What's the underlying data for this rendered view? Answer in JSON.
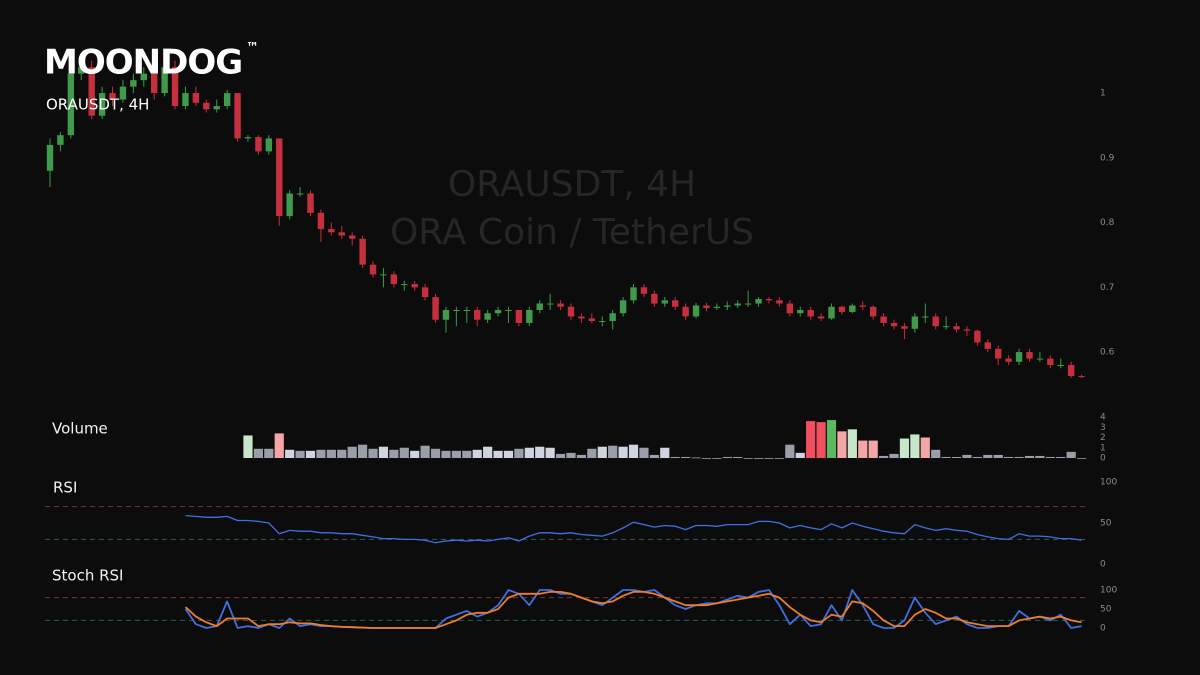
{
  "header": {
    "logo": "MOONDOG",
    "trademark": "™"
  },
  "chart_data": [
    {
      "type": "candlestick",
      "title": "ORAUSDT, 4H",
      "watermark": [
        "ORAUSDT, 4H",
        "ORA Coin / TetherUS"
      ],
      "up_color": "#3f9a4c",
      "down_color": "#c62f3d",
      "ylim": [
        0.526,
        1.082
      ],
      "yticks": [
        0.6,
        0.7,
        0.8,
        0.9,
        1
      ],
      "ohlc": [
        [
          0.88,
          0.93,
          0.855,
          0.92
        ],
        [
          0.92,
          0.94,
          0.91,
          0.935
        ],
        [
          0.935,
          1.05,
          0.93,
          1.03
        ],
        [
          1.03,
          1.06,
          1.02,
          1.04
        ],
        [
          1.04,
          1.05,
          0.96,
          0.965
        ],
        [
          0.965,
          1.01,
          0.96,
          1.0
        ],
        [
          1.0,
          1.01,
          0.98,
          0.99
        ],
        [
          0.99,
          1.02,
          0.985,
          1.01
        ],
        [
          1.01,
          1.03,
          1.0,
          1.02
        ],
        [
          1.02,
          1.04,
          1.01,
          1.03
        ],
        [
          1.03,
          1.04,
          0.99,
          1.0
        ],
        [
          1.0,
          1.05,
          0.995,
          1.04
        ],
        [
          1.04,
          1.05,
          0.975,
          0.98
        ],
        [
          0.98,
          1.01,
          0.975,
          1.0
        ],
        [
          1.0,
          1.01,
          0.98,
          0.985
        ],
        [
          0.985,
          0.99,
          0.97,
          0.975
        ],
        [
          0.975,
          0.99,
          0.97,
          0.98
        ],
        [
          0.98,
          1.005,
          0.975,
          1.0
        ],
        [
          1.0,
          1.0,
          0.925,
          0.93
        ],
        [
          0.93,
          0.935,
          0.925,
          0.932
        ],
        [
          0.932,
          0.935,
          0.905,
          0.91
        ],
        [
          0.91,
          0.935,
          0.905,
          0.93
        ],
        [
          0.93,
          0.93,
          0.795,
          0.81
        ],
        [
          0.81,
          0.85,
          0.805,
          0.845
        ],
        [
          0.845,
          0.855,
          0.84,
          0.845
        ],
        [
          0.845,
          0.85,
          0.81,
          0.815
        ],
        [
          0.815,
          0.82,
          0.77,
          0.79
        ],
        [
          0.79,
          0.8,
          0.78,
          0.785
        ],
        [
          0.785,
          0.795,
          0.775,
          0.78
        ],
        [
          0.78,
          0.785,
          0.765,
          0.775
        ],
        [
          0.775,
          0.78,
          0.73,
          0.735
        ],
        [
          0.735,
          0.74,
          0.715,
          0.72
        ],
        [
          0.72,
          0.73,
          0.7,
          0.72
        ],
        [
          0.72,
          0.725,
          0.7,
          0.705
        ],
        [
          0.705,
          0.71,
          0.695,
          0.705
        ],
        [
          0.705,
          0.71,
          0.695,
          0.7
        ],
        [
          0.7,
          0.705,
          0.68,
          0.685
        ],
        [
          0.685,
          0.69,
          0.645,
          0.65
        ],
        [
          0.65,
          0.67,
          0.63,
          0.665
        ],
        [
          0.665,
          0.67,
          0.64,
          0.665
        ],
        [
          0.665,
          0.67,
          0.645,
          0.665
        ],
        [
          0.665,
          0.67,
          0.64,
          0.65
        ],
        [
          0.65,
          0.665,
          0.645,
          0.66
        ],
        [
          0.66,
          0.67,
          0.655,
          0.665
        ],
        [
          0.665,
          0.67,
          0.645,
          0.665
        ],
        [
          0.665,
          0.665,
          0.64,
          0.645
        ],
        [
          0.645,
          0.67,
          0.64,
          0.665
        ],
        [
          0.665,
          0.68,
          0.66,
          0.675
        ],
        [
          0.675,
          0.69,
          0.665,
          0.675
        ],
        [
          0.675,
          0.68,
          0.665,
          0.67
        ],
        [
          0.67,
          0.675,
          0.65,
          0.655
        ],
        [
          0.655,
          0.66,
          0.645,
          0.652
        ],
        [
          0.652,
          0.66,
          0.645,
          0.648
        ],
        [
          0.648,
          0.655,
          0.64,
          0.648
        ],
        [
          0.648,
          0.665,
          0.635,
          0.66
        ],
        [
          0.66,
          0.685,
          0.655,
          0.68
        ],
        [
          0.68,
          0.705,
          0.675,
          0.7
        ],
        [
          0.7,
          0.705,
          0.685,
          0.69
        ],
        [
          0.69,
          0.695,
          0.67,
          0.675
        ],
        [
          0.675,
          0.685,
          0.67,
          0.68
        ],
        [
          0.68,
          0.685,
          0.665,
          0.67
        ],
        [
          0.67,
          0.675,
          0.65,
          0.655
        ],
        [
          0.655,
          0.676,
          0.652,
          0.672
        ],
        [
          0.672,
          0.676,
          0.663,
          0.668
        ],
        [
          0.668,
          0.675,
          0.665,
          0.67
        ],
        [
          0.67,
          0.678,
          0.665,
          0.672
        ],
        [
          0.672,
          0.68,
          0.668,
          0.675
        ],
        [
          0.675,
          0.695,
          0.67,
          0.675
        ],
        [
          0.675,
          0.685,
          0.67,
          0.682
        ],
        [
          0.682,
          0.685,
          0.675,
          0.68
        ],
        [
          0.68,
          0.685,
          0.67,
          0.675
        ],
        [
          0.675,
          0.68,
          0.655,
          0.66
        ],
        [
          0.66,
          0.67,
          0.655,
          0.665
        ],
        [
          0.665,
          0.67,
          0.65,
          0.655
        ],
        [
          0.655,
          0.66,
          0.648,
          0.652
        ],
        [
          0.652,
          0.675,
          0.65,
          0.67
        ],
        [
          0.67,
          0.672,
          0.658,
          0.662
        ],
        [
          0.662,
          0.675,
          0.66,
          0.672
        ],
        [
          0.672,
          0.678,
          0.665,
          0.67
        ],
        [
          0.67,
          0.672,
          0.65,
          0.655
        ],
        [
          0.655,
          0.66,
          0.64,
          0.645
        ],
        [
          0.645,
          0.65,
          0.635,
          0.64
        ],
        [
          0.64,
          0.645,
          0.62,
          0.636
        ],
        [
          0.636,
          0.66,
          0.63,
          0.655
        ],
        [
          0.655,
          0.675,
          0.645,
          0.655
        ],
        [
          0.655,
          0.66,
          0.635,
          0.64
        ],
        [
          0.64,
          0.655,
          0.635,
          0.64
        ],
        [
          0.64,
          0.645,
          0.63,
          0.635
        ],
        [
          0.635,
          0.64,
          0.625,
          0.633
        ],
        [
          0.633,
          0.635,
          0.61,
          0.615
        ],
        [
          0.615,
          0.62,
          0.6,
          0.605
        ],
        [
          0.605,
          0.61,
          0.58,
          0.59
        ],
        [
          0.59,
          0.595,
          0.58,
          0.585
        ],
        [
          0.585,
          0.605,
          0.58,
          0.6
        ],
        [
          0.6,
          0.605,
          0.585,
          0.59
        ],
        [
          0.59,
          0.6,
          0.585,
          0.59
        ],
        [
          0.59,
          0.595,
          0.575,
          0.58
        ],
        [
          0.58,
          0.59,
          0.575,
          0.58
        ],
        [
          0.58,
          0.585,
          0.56,
          0.563
        ],
        [
          0.563,
          0.565,
          0.56,
          0.562
        ]
      ]
    },
    {
      "type": "bar",
      "title": "Volume",
      "ylim": [
        0,
        4
      ],
      "yticks": [
        0,
        1,
        2,
        3,
        4
      ],
      "values": [
        null,
        null,
        null,
        null,
        null,
        null,
        null,
        null,
        null,
        null,
        null,
        null,
        null,
        null,
        null,
        null,
        null,
        null,
        null,
        2.2,
        0.9,
        0.9,
        2.4,
        0.8,
        0.7,
        0.7,
        0.8,
        0.8,
        0.8,
        1.1,
        1.3,
        0.9,
        1.1,
        0.8,
        1.0,
        0.7,
        1.2,
        0.9,
        0.7,
        0.7,
        0.7,
        0.8,
        1.1,
        0.7,
        0.7,
        0.9,
        1.0,
        1.1,
        1.0,
        0.4,
        0.5,
        0.3,
        0.9,
        1.1,
        1.2,
        1.1,
        1.3,
        1.0,
        0.3,
        1.0,
        0.1,
        0.1,
        0.05,
        0,
        0,
        0.1,
        0.1,
        0,
        0,
        0,
        0,
        1.3,
        0.5,
        3.6,
        3.5,
        3.7,
        2.6,
        2.8,
        1.7,
        1.7,
        0.2,
        0.4,
        1.9,
        2.3,
        2.0,
        0.8,
        0.1,
        0.1,
        0.3,
        0.1,
        0.3,
        0.3,
        0.1,
        0.1,
        0.2,
        0.2,
        0.1,
        0.1,
        0.6,
        0
      ],
      "colors": [
        null,
        null,
        null,
        null,
        null,
        null,
        null,
        null,
        null,
        null,
        null,
        null,
        null,
        null,
        null,
        null,
        null,
        null,
        null,
        "#c8e6c9",
        "#9a9ea8",
        "#9a9ea8",
        "#f4a6a6",
        "#cfd4e0",
        "#9a9ea8",
        "#cfd4e0",
        "#9a9ea8",
        "#9a9ea8",
        "#9a9ea8",
        "#9a9ea8",
        "#9a9ea8",
        "#9a9ea8",
        "#cfd4e0",
        "#9a9ea8",
        "#9a9ea8",
        "#cfd4e0",
        "#9a9ea8",
        "#9a9ea8",
        "#9a9ea8",
        "#9a9ea8",
        "#9a9ea8",
        "#cfd4e0",
        "#cfd4e0",
        "#cfd4e0",
        "#cfd4e0",
        "#9a9ea8",
        "#cfd4e0",
        "#cfd4e0",
        "#cfd4e0",
        "#9a9ea8",
        "#9a9ea8",
        "#9a9ea8",
        "#9a9ea8",
        "#cfd4e0",
        "#9a9ea8",
        "#cfd4e0",
        "#cfd4e0",
        "#9a9ea8",
        "#9a9ea8",
        "#cfd4e0",
        "#9a9ea8",
        "#9a9ea8",
        "#9a9ea8",
        "#9a9ea8",
        "#9a9ea8",
        "#9a9ea8",
        "#9a9ea8",
        "#9a9ea8",
        "#9a9ea8",
        "#9a9ea8",
        "#9a9ea8",
        "#9a9ea8",
        "#cfd4e0",
        "#f05060",
        "#f05060",
        "#5cb85c",
        "#f4a6a6",
        "#c8e6c9",
        "#f4a6a6",
        "#f4a6a6",
        "#9a9ea8",
        "#9a9ea8",
        "#c8e6c9",
        "#c8e6c9",
        "#f4a6a6",
        "#9a9ea8",
        "#9a9ea8",
        "#9a9ea8",
        "#9a9ea8",
        "#9a9ea8",
        "#9a9ea8",
        "#9a9ea8",
        "#9a9ea8",
        "#9a9ea8",
        "#9a9ea8",
        "#9a9ea8",
        "#9a9ea8",
        "#9a9ea8",
        "#9a9ea8",
        "#9a9ea8"
      ]
    },
    {
      "type": "line",
      "title": "RSI",
      "ylim": [
        0,
        100
      ],
      "yticks": [
        0,
        50,
        100
      ],
      "color": "#3f6fe0",
      "levels": [
        {
          "value": 70,
          "color": "#7a3326"
        },
        {
          "value": 30,
          "color": "#2a5f55"
        }
      ],
      "values": [
        null,
        null,
        null,
        null,
        null,
        null,
        null,
        null,
        null,
        null,
        null,
        null,
        null,
        59,
        58,
        57,
        57,
        58,
        53,
        53,
        52,
        50,
        37,
        41,
        40,
        40,
        38,
        38,
        37,
        37,
        35,
        33,
        31,
        31,
        30,
        30,
        29,
        26,
        28,
        29,
        28,
        29,
        28,
        30,
        32,
        28,
        34,
        38,
        38,
        37,
        38,
        36,
        35,
        34,
        38,
        44,
        51,
        48,
        45,
        47,
        46,
        42,
        47,
        47,
        46,
        48,
        48,
        48,
        52,
        52,
        50,
        44,
        47,
        44,
        42,
        49,
        44,
        50,
        46,
        43,
        40,
        38,
        37,
        48,
        44,
        41,
        43,
        41,
        40,
        36,
        33,
        31,
        30,
        37,
        34,
        34,
        33,
        31,
        31,
        29
      ]
    },
    {
      "type": "line",
      "title": "Stoch RSI",
      "ylim": [
        0,
        100
      ],
      "yticks": [
        0,
        50,
        100
      ],
      "levels": [
        {
          "value": 80,
          "color": "#7a3326"
        },
        {
          "value": 20,
          "color": "#2a5f55"
        }
      ],
      "lines": [
        {
          "color": "#3f6fe0",
          "values": [
            null,
            null,
            null,
            null,
            null,
            null,
            null,
            null,
            null,
            null,
            null,
            null,
            null,
            50,
            10,
            0,
            5,
            70,
            0,
            5,
            0,
            10,
            0,
            25,
            5,
            10,
            5,
            5,
            3,
            2,
            1,
            0,
            0,
            0,
            0,
            0,
            0,
            0,
            25,
            35,
            45,
            30,
            40,
            60,
            100,
            90,
            60,
            100,
            100,
            90,
            90,
            80,
            70,
            60,
            80,
            100,
            100,
            95,
            100,
            80,
            60,
            50,
            60,
            65,
            65,
            75,
            85,
            80,
            95,
            100,
            60,
            10,
            35,
            5,
            10,
            60,
            20,
            100,
            60,
            10,
            0,
            0,
            20,
            80,
            40,
            10,
            20,
            30,
            10,
            0,
            0,
            5,
            5,
            45,
            25,
            30,
            20,
            35,
            0,
            5
          ]
        },
        {
          "color": "#f07c2a",
          "values": [
            null,
            null,
            null,
            null,
            null,
            null,
            null,
            null,
            null,
            null,
            null,
            null,
            null,
            55,
            30,
            15,
            5,
            25,
            25,
            25,
            5,
            10,
            10,
            15,
            12,
            12,
            8,
            5,
            3,
            2,
            1,
            0,
            0,
            0,
            0,
            0,
            0,
            0,
            10,
            20,
            35,
            40,
            40,
            50,
            80,
            90,
            90,
            90,
            95,
            95,
            90,
            80,
            70,
            65,
            70,
            85,
            95,
            95,
            90,
            80,
            70,
            60,
            60,
            60,
            65,
            70,
            75,
            80,
            85,
            90,
            80,
            55,
            35,
            20,
            15,
            35,
            30,
            70,
            65,
            45,
            20,
            5,
            5,
            35,
            50,
            40,
            25,
            25,
            15,
            10,
            5,
            5,
            5,
            20,
            25,
            30,
            25,
            30,
            20,
            15
          ]
        }
      ]
    }
  ]
}
